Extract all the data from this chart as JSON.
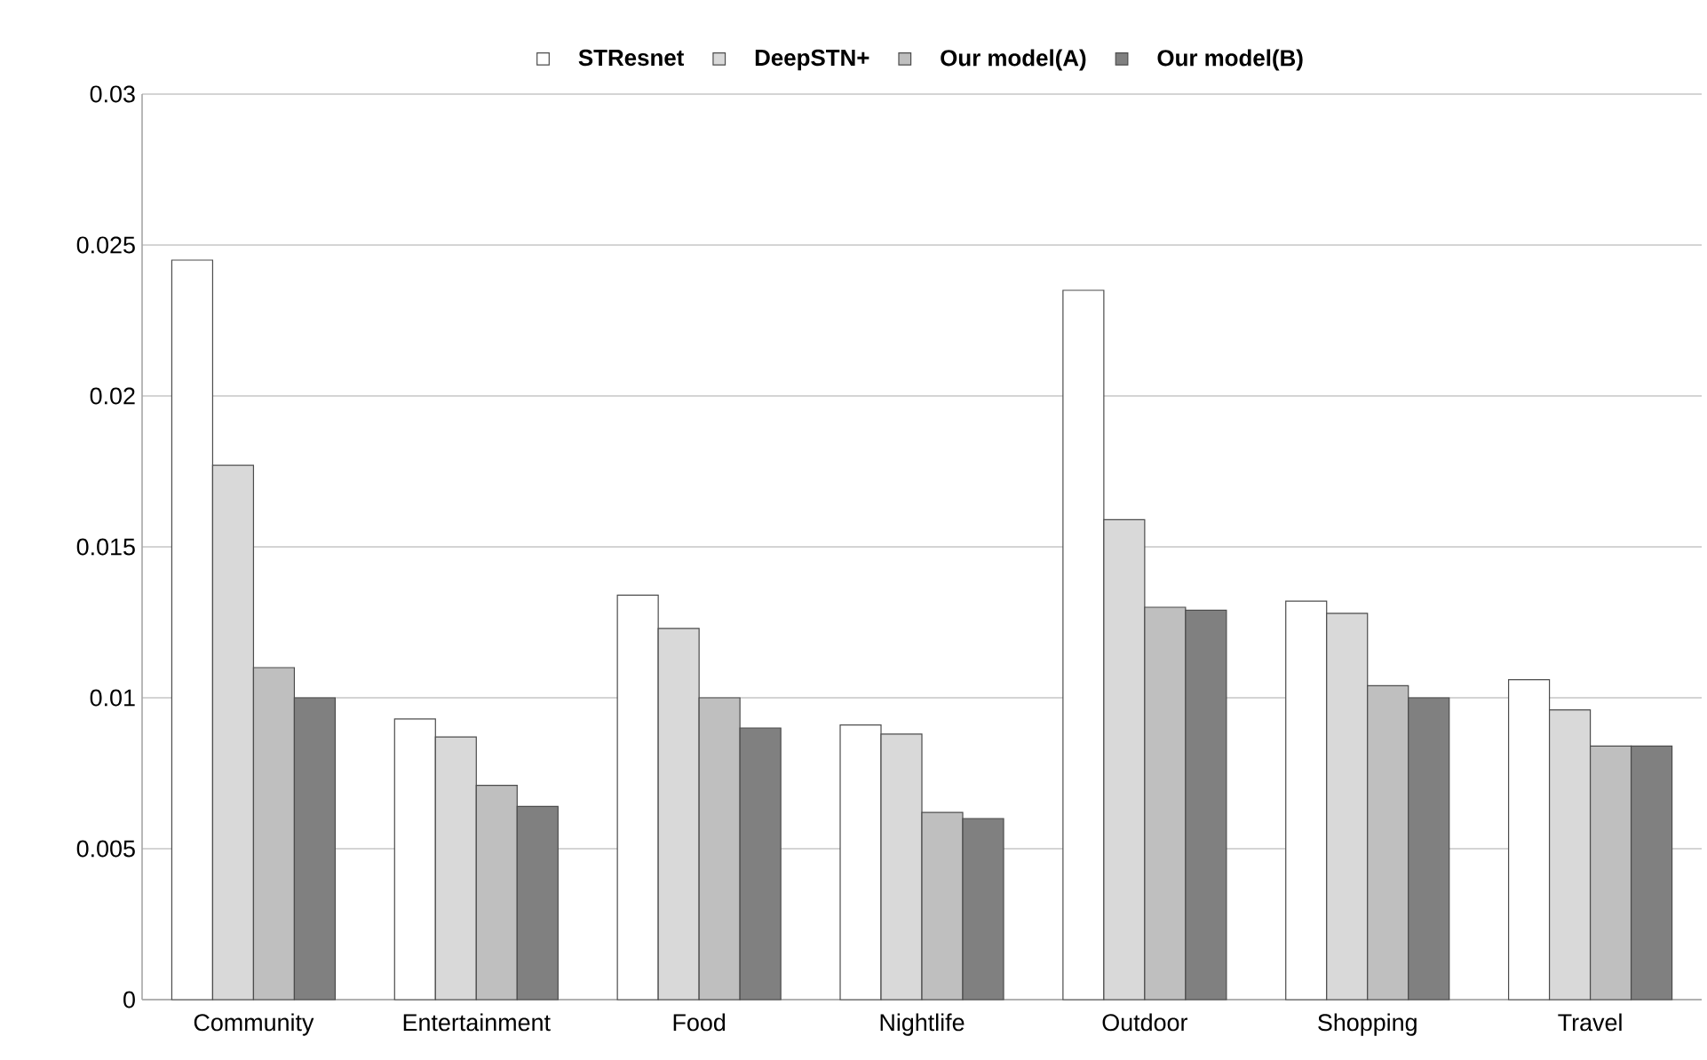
{
  "chart_data": {
    "type": "bar",
    "categories": [
      "Community",
      "Entertainment",
      "Food",
      "Nightlife",
      "Outdoor",
      "Shopping",
      "Travel"
    ],
    "series": [
      {
        "name": "STResnet",
        "color": "#ffffff",
        "values": [
          0.0245,
          0.0093,
          0.0134,
          0.0091,
          0.0235,
          0.0132,
          0.0106
        ]
      },
      {
        "name": "DeepSTN+",
        "color": "#d9d9d9",
        "values": [
          0.0177,
          0.0087,
          0.0123,
          0.0088,
          0.0159,
          0.0128,
          0.0096
        ]
      },
      {
        "name": "Our model(A)",
        "color": "#bfbfbf",
        "values": [
          0.011,
          0.0071,
          0.01,
          0.0062,
          0.013,
          0.0104,
          0.0084
        ]
      },
      {
        "name": "Our model(B)",
        "color": "#808080",
        "values": [
          0.01,
          0.0064,
          0.009,
          0.006,
          0.0129,
          0.01,
          0.0084
        ]
      }
    ],
    "ylim": [
      0,
      0.03
    ],
    "yticks": [
      0,
      0.005,
      0.01,
      0.015,
      0.02,
      0.025,
      0.03
    ],
    "grid": "y",
    "legend": "top"
  }
}
